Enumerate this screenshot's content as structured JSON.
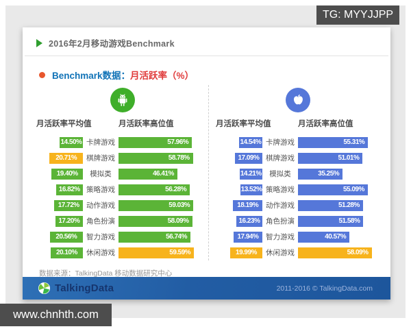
{
  "watermarks": {
    "top_right": "TG: MYYJJPP",
    "bottom_left": "www.chnhth.com"
  },
  "header": {
    "title": "2016年2月移动游戏Benchmark"
  },
  "subtitle": {
    "prefix": "Benchmark数据：",
    "highlight": "月活跃率（%）"
  },
  "columns": {
    "avg": "月活跃率平均值",
    "high": "月活跃率高位值"
  },
  "source": "数据来源：TalkingData 移动数据研究中心",
  "footer": {
    "brand": "TalkingData",
    "copyright": "2011-2016 © TalkingData.com"
  },
  "colors": {
    "android_green": "#5bb437",
    "ios_blue": "#5577d9",
    "highlight_orange": "#f7b31c",
    "android_icon_bg": "#3fae2a",
    "ios_icon_bg": "#5577d9",
    "footer_blue": "#22609f",
    "subtitle_blue": "#1173b7",
    "subtitle_red": "#e03c3c"
  },
  "chart_data": {
    "type": "bar",
    "title": "2016年2月移动游戏Benchmark",
    "subtitle": "Benchmark数据：月活跃率（%）",
    "unit": "%",
    "categories": [
      "卡牌游戏",
      "棋牌游戏",
      "模拟类",
      "策略游戏",
      "动作游戏",
      "角色扮演",
      "智力游戏",
      "休闲游戏"
    ],
    "panels": [
      {
        "platform": "Android",
        "icon": "android-icon",
        "series": [
          {
            "name": "月活跃率平均值",
            "values": [
              14.5,
              20.71,
              19.4,
              16.82,
              17.72,
              17.2,
              20.56,
              20.1
            ]
          },
          {
            "name": "月活跃率高位值",
            "values": [
              57.96,
              58.78,
              46.41,
              56.28,
              59.03,
              58.09,
              56.74,
              59.59
            ]
          }
        ]
      },
      {
        "platform": "iOS",
        "icon": "apple-icon",
        "series": [
          {
            "name": "月活跃率平均值",
            "values": [
              14.54,
              17.09,
              14.21,
              13.52,
              18.19,
              16.23,
              17.94,
              19.99
            ]
          },
          {
            "name": "月活跃率高位值",
            "values": [
              55.31,
              51.01,
              35.25,
              55.09,
              51.28,
              51.58,
              40.57,
              58.09
            ]
          }
        ]
      }
    ],
    "legend_position": "none",
    "grid": false,
    "value_range": [
      0,
      60
    ],
    "highlight_rule": "maximum value of each column rendered in orange"
  }
}
